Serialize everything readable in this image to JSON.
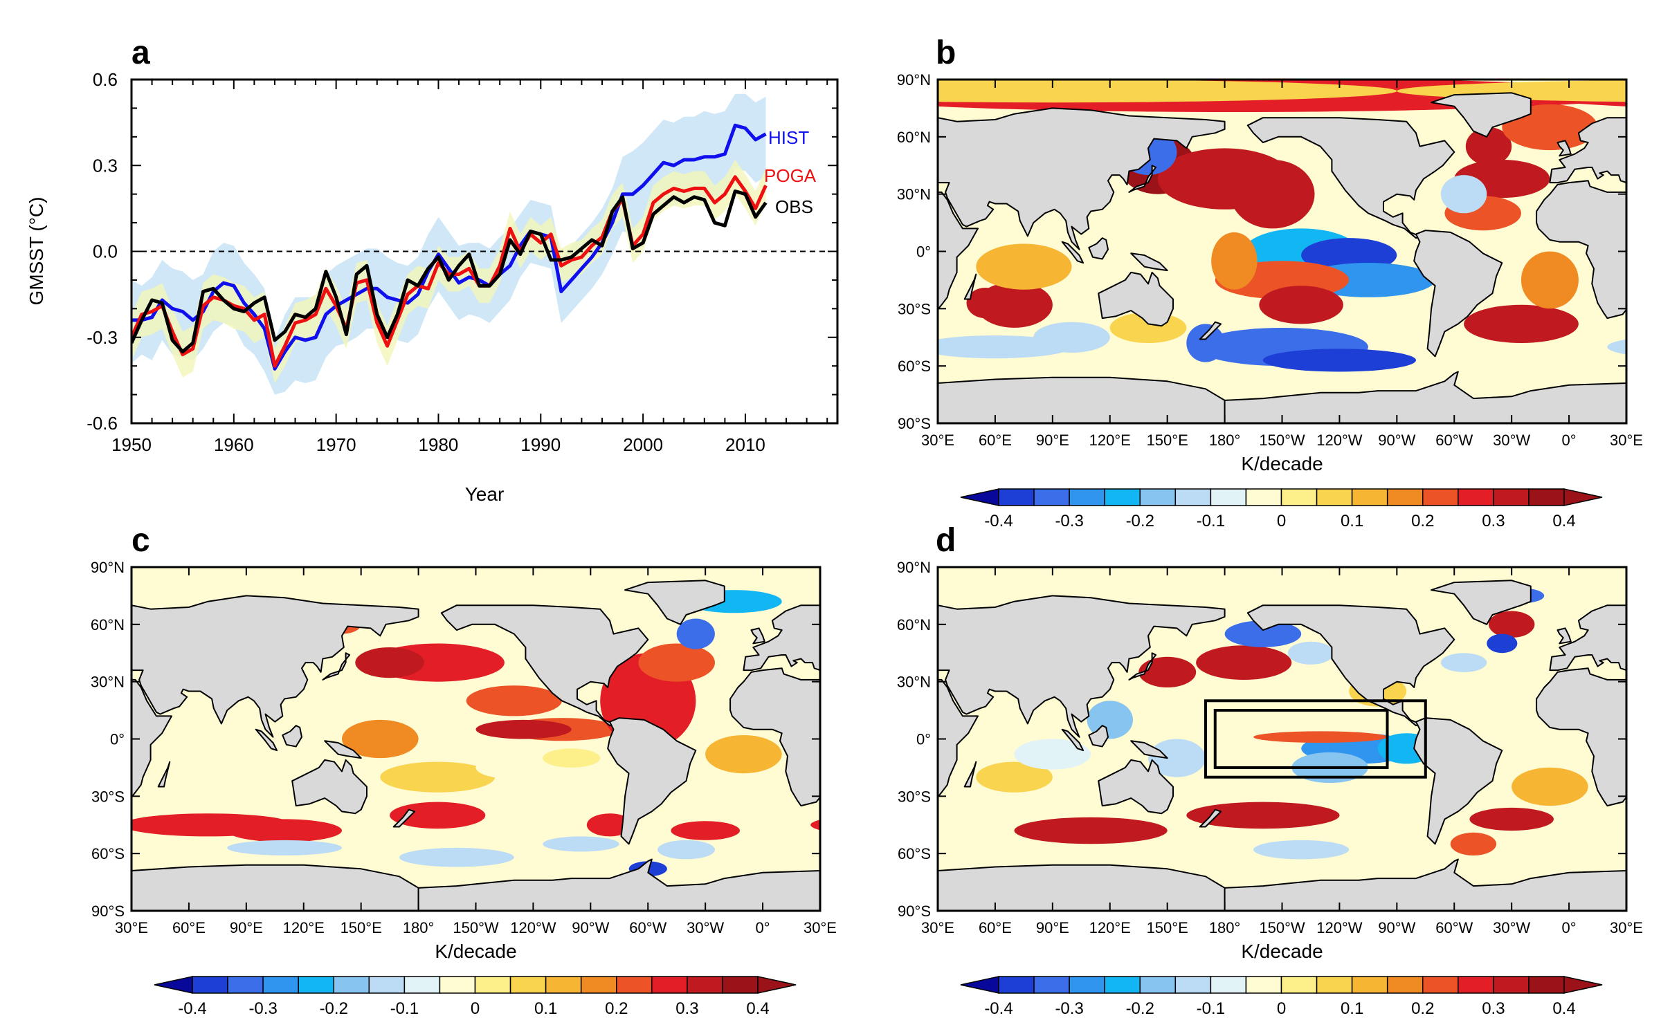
{
  "palette": [
    "#08089a",
    "#1d3fd6",
    "#3b6ee8",
    "#2f95ef",
    "#12b6f2",
    "#87c4ef",
    "#bcdcf5",
    "#e2f3f8",
    "#fffbd2",
    "#fdf08a",
    "#f9d44f",
    "#f7b534",
    "#f08a23",
    "#ec5428",
    "#e41e26",
    "#c01a20",
    "#9b1318"
  ],
  "colorbar": {
    "label": "K/decade",
    "ticks": [
      "-0.4",
      "-0.3",
      "-0.2",
      "-0.1",
      "0",
      "0.1",
      "0.2",
      "0.3",
      "0.4"
    ]
  },
  "map_axes": {
    "lon_ticks": [
      "30°E",
      "60°E",
      "90°E",
      "120°E",
      "150°E",
      "180°",
      "150°W",
      "120°W",
      "90°W",
      "60°W",
      "30°W",
      "0°",
      "30°E"
    ],
    "lat_ticks": [
      "90°N",
      "60°N",
      "30°N",
      "0°",
      "30°S",
      "60°S",
      "90°S"
    ]
  },
  "panels": {
    "a": {
      "letter": "a"
    },
    "b": {
      "letter": "b",
      "xlabel": "K/decade"
    },
    "c": {
      "letter": "c",
      "xlabel": "K/decade"
    },
    "d": {
      "letter": "d",
      "xlabel": "K/decade"
    }
  },
  "chart_data": {
    "type": "line",
    "ylabel": "GMSST (°C)",
    "xlabel": "Year",
    "xlim": [
      1950,
      2019
    ],
    "ylim": [
      -0.6,
      0.6
    ],
    "xticks": [
      "1950",
      "1960",
      "1970",
      "1980",
      "1990",
      "2000",
      "2010"
    ],
    "yticks": [
      "0.6",
      "0.3",
      "0.0",
      "-0.3",
      "-0.6"
    ],
    "reference_line": 0,
    "x": [
      1950,
      1951,
      1952,
      1953,
      1954,
      1955,
      1956,
      1957,
      1958,
      1959,
      1960,
      1961,
      1962,
      1963,
      1964,
      1965,
      1966,
      1967,
      1968,
      1969,
      1970,
      1971,
      1972,
      1973,
      1974,
      1975,
      1976,
      1977,
      1978,
      1979,
      1980,
      1981,
      1982,
      1983,
      1984,
      1985,
      1986,
      1987,
      1988,
      1989,
      1990,
      1991,
      1992,
      1993,
      1994,
      1995,
      1996,
      1997,
      1998,
      1999,
      2000,
      2001,
      2002,
      2003,
      2004,
      2005,
      2006,
      2007,
      2008,
      2009,
      2010,
      2011,
      2012
    ],
    "series": [
      {
        "name": "HIST",
        "color": "#1010ee",
        "values": [
          -0.24,
          -0.24,
          -0.23,
          -0.17,
          -0.2,
          -0.21,
          -0.24,
          -0.21,
          -0.14,
          -0.11,
          -0.12,
          -0.18,
          -0.22,
          -0.27,
          -0.41,
          -0.35,
          -0.3,
          -0.31,
          -0.3,
          -0.22,
          -0.19,
          -0.17,
          -0.15,
          -0.13,
          -0.13,
          -0.16,
          -0.17,
          -0.18,
          -0.15,
          -0.07,
          -0.01,
          -0.06,
          -0.11,
          -0.09,
          -0.1,
          -0.12,
          -0.08,
          -0.05,
          0.02,
          0.07,
          0.06,
          0.05,
          -0.14,
          -0.1,
          -0.06,
          -0.02,
          0.03,
          0.1,
          0.2,
          0.2,
          0.23,
          0.27,
          0.31,
          0.3,
          0.32,
          0.32,
          0.33,
          0.33,
          0.34,
          0.44,
          0.43,
          0.39,
          0.41
        ],
        "band": {
          "color": "#cde6f8",
          "lower": [
            -0.39,
            -0.36,
            -0.38,
            -0.31,
            -0.36,
            -0.37,
            -0.38,
            -0.34,
            -0.28,
            -0.25,
            -0.26,
            -0.33,
            -0.36,
            -0.42,
            -0.5,
            -0.49,
            -0.45,
            -0.46,
            -0.45,
            -0.37,
            -0.33,
            -0.32,
            -0.3,
            -0.27,
            -0.27,
            -0.3,
            -0.31,
            -0.32,
            -0.29,
            -0.2,
            -0.14,
            -0.19,
            -0.24,
            -0.22,
            -0.23,
            -0.25,
            -0.21,
            -0.17,
            -0.09,
            -0.04,
            -0.05,
            -0.06,
            -0.25,
            -0.21,
            -0.17,
            -0.13,
            -0.08,
            -0.01,
            0.07,
            0.06,
            0.09,
            0.13,
            0.16,
            0.16,
            0.17,
            0.18,
            0.18,
            0.19,
            0.2,
            0.29,
            0.28,
            0.24,
            0.26
          ],
          "upper": [
            -0.1,
            -0.12,
            -0.09,
            -0.03,
            -0.06,
            -0.07,
            -0.1,
            -0.08,
            0.0,
            0.03,
            0.02,
            -0.04,
            -0.08,
            -0.13,
            -0.31,
            -0.22,
            -0.16,
            -0.16,
            -0.16,
            -0.08,
            -0.05,
            -0.03,
            -0.01,
            0.01,
            0.01,
            -0.02,
            -0.04,
            -0.05,
            -0.02,
            0.06,
            0.12,
            0.07,
            0.02,
            0.03,
            0.03,
            0.01,
            0.05,
            0.08,
            0.13,
            0.18,
            0.17,
            0.16,
            -0.02,
            0.02,
            0.06,
            0.1,
            0.15,
            0.22,
            0.33,
            0.35,
            0.38,
            0.42,
            0.46,
            0.45,
            0.47,
            0.47,
            0.49,
            0.48,
            0.49,
            0.55,
            0.55,
            0.52,
            0.54
          ]
        }
      },
      {
        "name": "POGA",
        "color": "#ee1010",
        "values": [
          -0.3,
          -0.22,
          -0.21,
          -0.19,
          -0.28,
          -0.36,
          -0.34,
          -0.19,
          -0.16,
          -0.17,
          -0.19,
          -0.2,
          -0.24,
          -0.22,
          -0.4,
          -0.33,
          -0.25,
          -0.24,
          -0.22,
          -0.13,
          -0.19,
          -0.27,
          -0.11,
          -0.1,
          -0.25,
          -0.33,
          -0.24,
          -0.15,
          -0.12,
          -0.13,
          -0.04,
          -0.08,
          -0.08,
          -0.06,
          -0.12,
          -0.12,
          -0.05,
          0.08,
          0.0,
          0.06,
          0.03,
          0.06,
          -0.05,
          -0.03,
          -0.02,
          0.02,
          0.05,
          0.14,
          0.18,
          0.02,
          0.06,
          0.17,
          0.2,
          0.22,
          0.21,
          0.22,
          0.22,
          0.17,
          0.2,
          0.26,
          0.21,
          0.15,
          0.23
        ],
        "band": {
          "color": "#f2f6b8",
          "lower": [
            -0.38,
            -0.3,
            -0.29,
            -0.27,
            -0.36,
            -0.44,
            -0.42,
            -0.27,
            -0.24,
            -0.25,
            -0.27,
            -0.28,
            -0.32,
            -0.3,
            -0.46,
            -0.4,
            -0.32,
            -0.31,
            -0.29,
            -0.2,
            -0.26,
            -0.34,
            -0.18,
            -0.17,
            -0.32,
            -0.4,
            -0.31,
            -0.22,
            -0.19,
            -0.2,
            -0.1,
            -0.14,
            -0.14,
            -0.12,
            -0.18,
            -0.18,
            -0.11,
            0.02,
            -0.06,
            0.0,
            -0.03,
            0.0,
            -0.11,
            -0.09,
            -0.08,
            -0.04,
            -0.01,
            0.08,
            0.12,
            -0.04,
            0.0,
            0.11,
            0.14,
            0.16,
            0.15,
            0.16,
            0.16,
            0.11,
            0.14,
            0.2,
            0.15,
            0.09,
            0.17
          ],
          "upper": [
            -0.22,
            -0.14,
            -0.13,
            -0.11,
            -0.2,
            -0.28,
            -0.26,
            -0.11,
            -0.08,
            -0.09,
            -0.11,
            -0.12,
            -0.16,
            -0.14,
            -0.34,
            -0.26,
            -0.18,
            -0.17,
            -0.15,
            -0.06,
            -0.12,
            -0.2,
            -0.04,
            -0.03,
            -0.18,
            -0.26,
            -0.17,
            -0.08,
            -0.05,
            -0.06,
            0.02,
            -0.02,
            -0.02,
            0.0,
            -0.06,
            -0.06,
            0.01,
            0.14,
            0.06,
            0.12,
            0.09,
            0.12,
            0.01,
            0.03,
            0.04,
            0.08,
            0.11,
            0.2,
            0.24,
            0.08,
            0.12,
            0.23,
            0.26,
            0.28,
            0.27,
            0.28,
            0.28,
            0.23,
            0.26,
            0.32,
            0.27,
            0.21,
            0.29
          ]
        }
      },
      {
        "name": "OBS",
        "color": "#000000",
        "values": [
          -0.32,
          -0.24,
          -0.17,
          -0.18,
          -0.31,
          -0.35,
          -0.32,
          -0.14,
          -0.13,
          -0.17,
          -0.2,
          -0.21,
          -0.18,
          -0.16,
          -0.31,
          -0.28,
          -0.22,
          -0.23,
          -0.2,
          -0.07,
          -0.16,
          -0.29,
          -0.08,
          -0.05,
          -0.22,
          -0.3,
          -0.22,
          -0.1,
          -0.12,
          -0.06,
          -0.02,
          -0.1,
          -0.05,
          -0.01,
          -0.12,
          -0.12,
          -0.08,
          0.04,
          -0.01,
          0.07,
          0.06,
          -0.03,
          -0.03,
          -0.02,
          0.01,
          0.04,
          0.02,
          0.14,
          0.19,
          0.01,
          0.03,
          0.13,
          0.16,
          0.19,
          0.17,
          0.19,
          0.18,
          0.1,
          0.09,
          0.21,
          0.2,
          0.12,
          0.17
        ]
      }
    ]
  }
}
